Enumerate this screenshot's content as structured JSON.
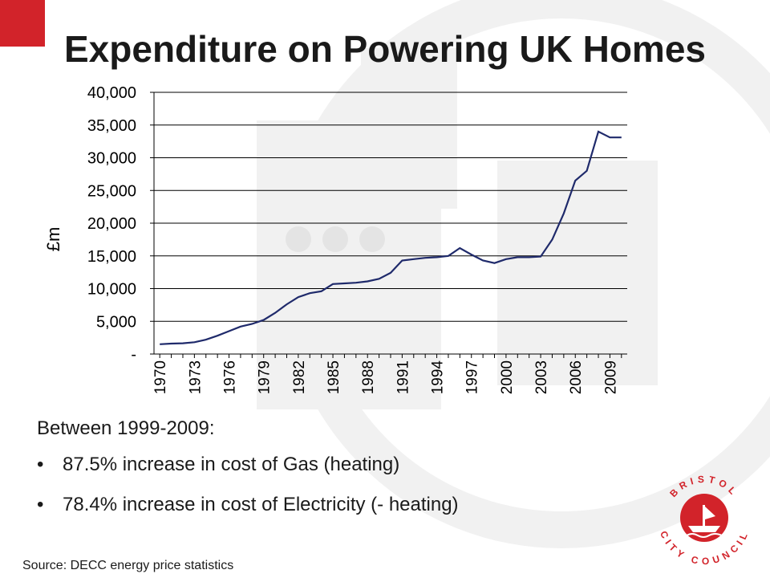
{
  "slide": {
    "title": "Expenditure on Powering UK Homes",
    "intro": "Between 1999-2009:",
    "bullets": [
      "87.5% increase in cost of Gas (heating)",
      "78.4% increase in cost of Electricity (- heating)"
    ],
    "source": "Source: DECC energy price statistics",
    "accent_color": "#d2232a",
    "logo": {
      "icon": "bristol-city-council-logo",
      "top_text": "BRISTOL",
      "bottom_text": "CITY COUNCIL"
    }
  },
  "chart_data": {
    "type": "line",
    "ylabel": "£m",
    "ylim": [
      0,
      40000
    ],
    "ytick_values": [
      0,
      5000,
      10000,
      15000,
      20000,
      25000,
      30000,
      35000,
      40000
    ],
    "ytick_labels": [
      "-",
      "5,000",
      "10,000",
      "15,000",
      "20,000",
      "25,000",
      "30,000",
      "35,000",
      "40,000"
    ],
    "xtick_labels": [
      "1970",
      "1973",
      "1976",
      "1979",
      "1982",
      "1985",
      "1988",
      "1991",
      "1994",
      "1997",
      "2000",
      "2003",
      "2006",
      "2009"
    ],
    "grid": true,
    "line_color": "#1f2a6b",
    "series": [
      {
        "x": [
          1970,
          1971,
          1972,
          1973,
          1974,
          1975,
          1976,
          1977,
          1978,
          1979,
          1980,
          1981,
          1982,
          1983,
          1984,
          1985,
          1986,
          1987,
          1988,
          1989,
          1990,
          1991,
          1992,
          1993,
          1994,
          1995,
          1996,
          1997,
          1998,
          1999,
          2000,
          2001,
          2002,
          2003,
          2004,
          2005,
          2006,
          2007,
          2008,
          2009,
          2010
        ],
        "values": [
          1500,
          1600,
          1650,
          1800,
          2200,
          2800,
          3500,
          4200,
          4600,
          5200,
          6300,
          7600,
          8700,
          9300,
          9600,
          10700,
          10800,
          10900,
          11100,
          11500,
          12400,
          14300,
          14500,
          14700,
          14800,
          15000,
          16200,
          15200,
          14300,
          13900,
          14500,
          14800,
          14800,
          14900,
          17500,
          21500,
          26500,
          28000,
          34000,
          33100,
          33100
        ]
      }
    ]
  }
}
